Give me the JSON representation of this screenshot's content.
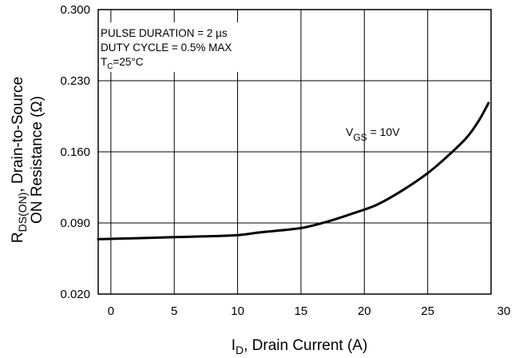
{
  "chart_data": {
    "type": "line",
    "xlabel_main": "I",
    "xlabel_sub": "D",
    "xlabel_rest": ", Drain Current (A)",
    "ylabel_main": "R",
    "ylabel_sub": "DS(ON)",
    "ylabel_line1_rest": ", Drain-to-Source",
    "ylabel_line2": "ON Resistance (Ω)",
    "xlim": [
      -1,
      30
    ],
    "ylim": [
      0.02,
      0.3
    ],
    "x_ticks": [
      0,
      5,
      10,
      15,
      20,
      25,
      30
    ],
    "x_tick_labels": [
      "0",
      "5",
      "10",
      "15",
      "20",
      "25",
      "30"
    ],
    "y_ticks": [
      0.02,
      0.09,
      0.16,
      0.23,
      0.3
    ],
    "y_tick_labels": [
      "0.020",
      "0.090",
      "0.160",
      "0.230",
      "0.300"
    ],
    "grid": true,
    "conditions": {
      "line1": "PULSE DURATION = 2 µs",
      "line2": "DUTY CYCLE = 0.5% MAX",
      "line3_main": "T",
      "line3_sub": "C",
      "line3_rest": "=25°C"
    },
    "series": [
      {
        "label_main": "V",
        "label_sub": "GS",
        "label_rest": " = 10V",
        "x": [
          -1,
          2,
          5,
          8,
          10,
          12,
          15,
          17,
          19,
          21,
          23,
          25,
          26.5,
          28,
          29,
          29.8
        ],
        "y": [
          0.074,
          0.075,
          0.076,
          0.077,
          0.078,
          0.081,
          0.085,
          0.091,
          0.099,
          0.108,
          0.122,
          0.139,
          0.155,
          0.173,
          0.19,
          0.208
        ]
      }
    ]
  }
}
